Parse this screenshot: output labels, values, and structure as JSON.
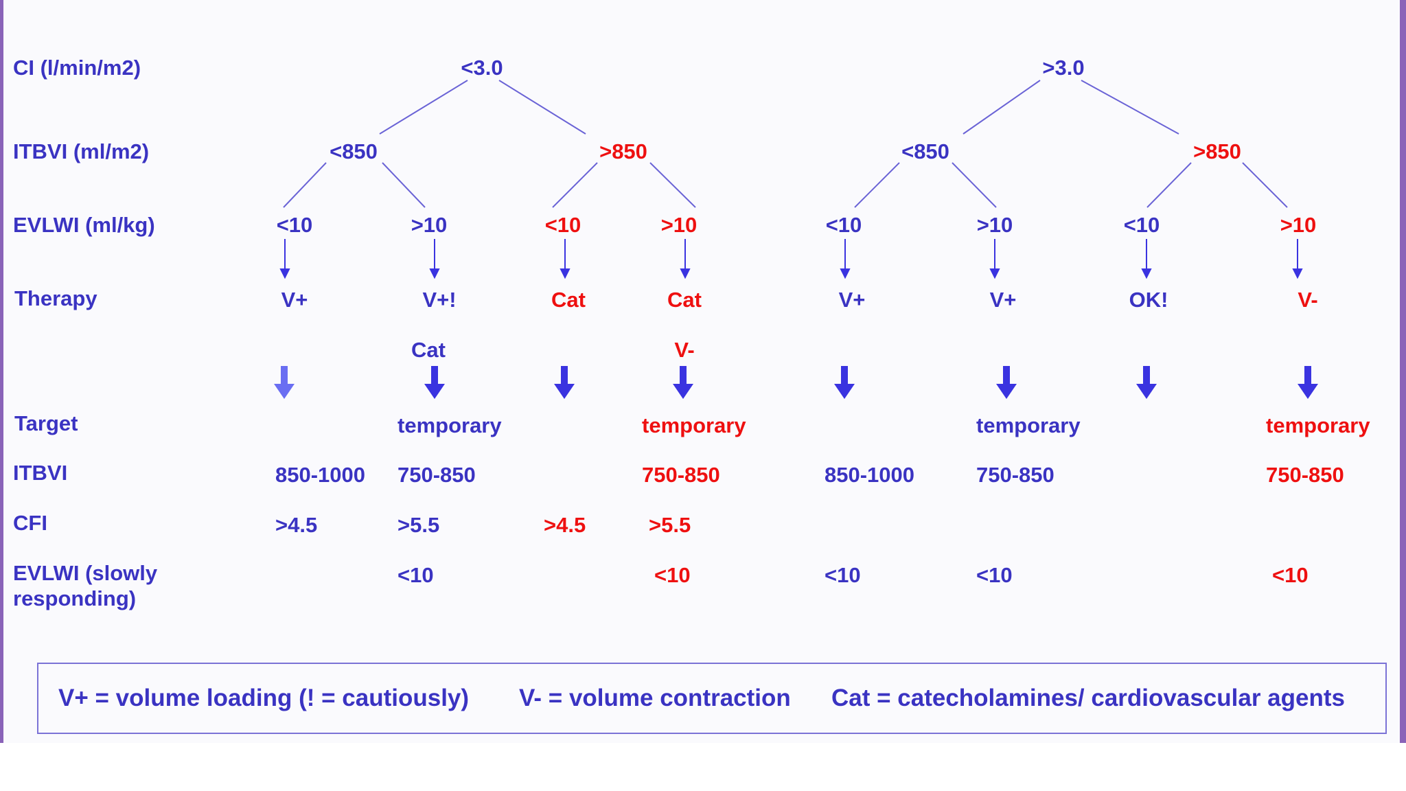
{
  "row_labels": {
    "ci": "CI (l/min/m2)",
    "itbvi": "ITBVI (ml/m2)",
    "evlwi": "EVLWI (ml/kg)",
    "therapy": "Therapy",
    "target": "Target",
    "target_itbvi": "ITBVI",
    "cfi": "CFI",
    "evlwi_slow_1": "EVLWI (slowly",
    "evlwi_slow_2": "responding)"
  },
  "ci_nodes": [
    "<3.0",
    ">3.0"
  ],
  "itbvi_nodes": [
    "<850",
    ">850",
    "<850",
    ">850"
  ],
  "evlwi_nodes": [
    "<10",
    ">10",
    "<10",
    ">10",
    "<10",
    ">10",
    "<10",
    ">10"
  ],
  "therapy": [
    "V+",
    "V+!",
    "Cat",
    "Cat",
    "V+",
    "V+",
    "OK!",
    "V-"
  ],
  "therapy_secondary": {
    "col2": "Cat",
    "col4": "V-"
  },
  "targets": {
    "temporary": [
      "temporary",
      "temporary",
      "temporary",
      "temporary"
    ],
    "itbvi": [
      "850-1000",
      "750-850",
      "750-850",
      "850-1000",
      "750-850",
      "750-850"
    ],
    "cfi": [
      ">4.5",
      ">5.5",
      ">4.5",
      ">5.5"
    ],
    "evlwi": [
      "<10",
      "<10",
      "<10",
      "<10",
      "<10"
    ]
  },
  "legend": {
    "v_plus": "V+ = volume loading (! = cautiously)",
    "v_minus": "V- = volume contraction",
    "cat": "Cat = catecholamines/  cardiovascular agents"
  },
  "colors": {
    "blue": "#3a33c2",
    "red": "#ee1010",
    "frame": "#8a63b8",
    "arrow": "#3a33e0"
  }
}
